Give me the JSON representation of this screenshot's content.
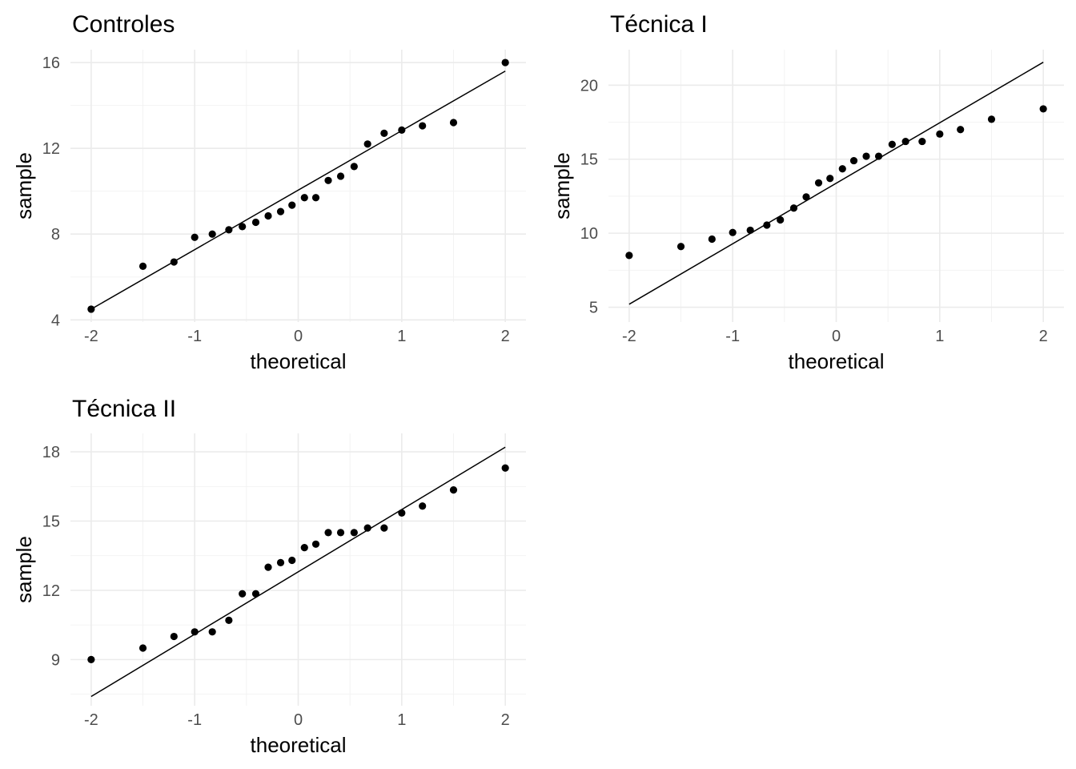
{
  "chart_data": [
    {
      "type": "scatter",
      "title": "Controles",
      "xlabel": "theoretical",
      "ylabel": "sample",
      "xlim": [
        -2.2,
        2.2
      ],
      "ylim": [
        3.9,
        16.6
      ],
      "xticks": [
        -2,
        -1,
        0,
        1,
        2
      ],
      "xtick_labels": [
        "-2",
        "-1",
        "0",
        "1",
        "2"
      ],
      "yticks": [
        4,
        8,
        12,
        16
      ],
      "ytick_labels": [
        "4",
        "8",
        "12",
        "16"
      ],
      "grid": true,
      "points": {
        "x": [
          -2.0,
          -1.5,
          -1.2,
          -1.0,
          -0.83,
          -0.67,
          -0.54,
          -0.41,
          -0.29,
          -0.17,
          -0.06,
          0.06,
          0.17,
          0.29,
          0.41,
          0.54,
          0.67,
          0.83,
          1.0,
          1.2,
          1.5,
          2.0
        ],
        "y": [
          4.5,
          6.5,
          6.7,
          7.85,
          8.0,
          8.2,
          8.35,
          8.55,
          8.85,
          9.05,
          9.35,
          9.7,
          9.7,
          10.5,
          10.7,
          11.15,
          12.2,
          12.7,
          12.85,
          13.05,
          13.2,
          16.0
        ]
      },
      "reference_line": {
        "x": [
          -2.0,
          2.0
        ],
        "y": [
          4.5,
          15.6
        ]
      }
    },
    {
      "type": "scatter",
      "title": "Técnica I",
      "xlabel": "theoretical",
      "ylabel": "sample",
      "xlim": [
        -2.2,
        2.2
      ],
      "ylim": [
        4.0,
        22.4
      ],
      "xticks": [
        -2,
        -1,
        0,
        1,
        2
      ],
      "xtick_labels": [
        "-2",
        "-1",
        "0",
        "1",
        "2"
      ],
      "yticks": [
        5,
        10,
        15,
        20
      ],
      "ytick_labels": [
        "5",
        "10",
        "15",
        "20"
      ],
      "grid": true,
      "points": {
        "x": [
          -2.0,
          -1.5,
          -1.2,
          -1.0,
          -0.83,
          -0.67,
          -0.54,
          -0.41,
          -0.29,
          -0.17,
          -0.06,
          0.06,
          0.17,
          0.29,
          0.41,
          0.54,
          0.67,
          0.83,
          1.0,
          1.2,
          1.5,
          2.0
        ],
        "y": [
          8.5,
          9.1,
          9.6,
          10.05,
          10.2,
          10.55,
          10.9,
          11.7,
          12.45,
          13.4,
          13.7,
          14.35,
          14.9,
          15.2,
          15.2,
          16.0,
          16.2,
          16.2,
          16.7,
          17.0,
          17.7,
          18.4
        ]
      },
      "reference_line": {
        "x": [
          -2.0,
          2.0
        ],
        "y": [
          5.2,
          21.55
        ]
      }
    },
    {
      "type": "scatter",
      "title": "Técnica II",
      "xlabel": "theoretical",
      "ylabel": "sample",
      "xlim": [
        -2.2,
        2.2
      ],
      "ylim": [
        7.0,
        18.8
      ],
      "xticks": [
        -2,
        -1,
        0,
        1,
        2
      ],
      "xtick_labels": [
        "-2",
        "-1",
        "0",
        "1",
        "2"
      ],
      "yticks": [
        9,
        12,
        15,
        18
      ],
      "ytick_labels": [
        "9",
        "12",
        "15",
        "18"
      ],
      "grid": true,
      "points": {
        "x": [
          -2.0,
          -1.5,
          -1.2,
          -1.0,
          -0.83,
          -0.67,
          -0.54,
          -0.41,
          -0.29,
          -0.17,
          -0.06,
          0.06,
          0.17,
          0.29,
          0.41,
          0.54,
          0.67,
          0.83,
          1.0,
          1.2,
          1.5,
          2.0
        ],
        "y": [
          9.0,
          9.5,
          10.0,
          10.2,
          10.2,
          10.7,
          11.85,
          11.85,
          13.0,
          13.2,
          13.3,
          13.85,
          14.0,
          14.5,
          14.5,
          14.5,
          14.7,
          14.7,
          15.35,
          15.65,
          16.35,
          17.3
        ]
      },
      "reference_line": {
        "x": [
          -2.0,
          2.0
        ],
        "y": [
          7.4,
          18.2
        ]
      }
    }
  ]
}
